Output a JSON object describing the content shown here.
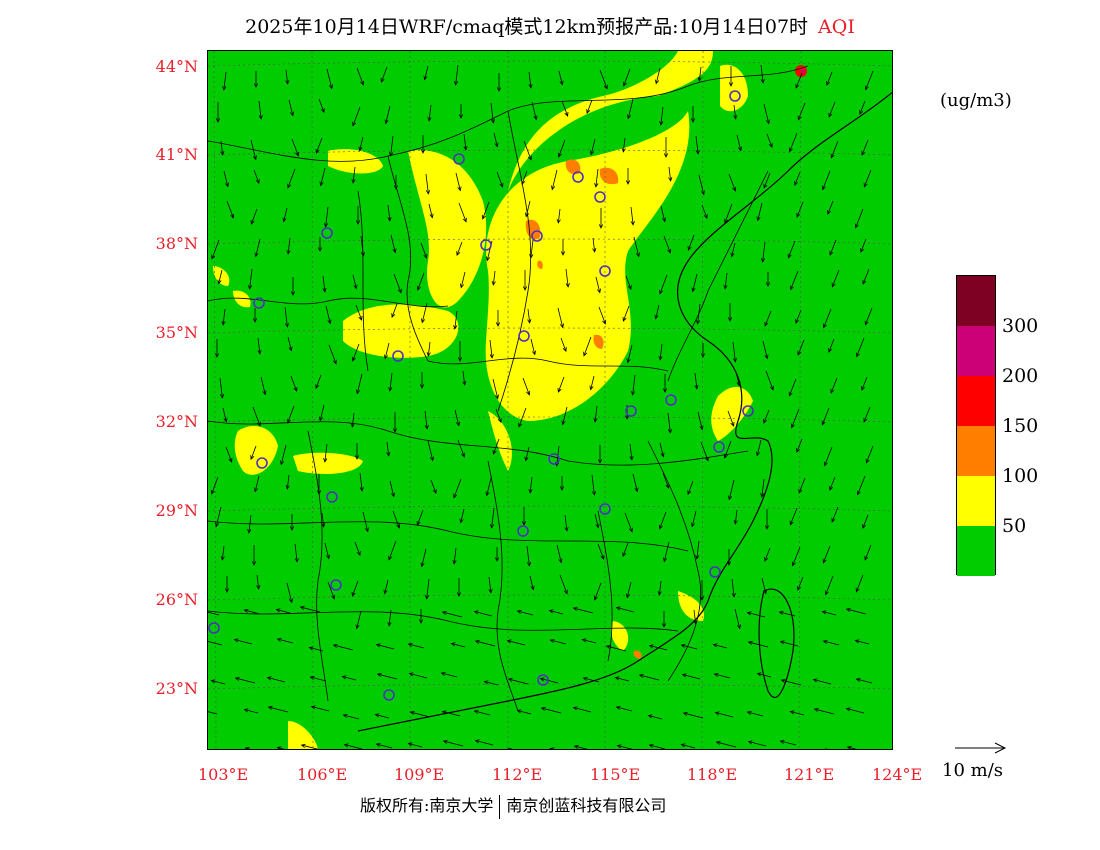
{
  "header": {
    "title": "2025年10月14日WRF/cmaq模式12km预报产品:10月14日07时",
    "variable": "AQI"
  },
  "map": {
    "lat_labels": [
      "44°N",
      "41°N",
      "38°N",
      "35°N",
      "32°N",
      "29°N",
      "26°N",
      "23°N"
    ],
    "lon_labels": [
      "103°E",
      "106°E",
      "109°E",
      "112°E",
      "115°E",
      "118°E",
      "121°E",
      "124°E"
    ]
  },
  "legend": {
    "unit": "(ug/m3)",
    "levels": [
      {
        "label": "50",
        "color": "#00cc00"
      },
      {
        "label": "100",
        "color": "#ffff00"
      },
      {
        "label": "150",
        "color": "#ff7e00"
      },
      {
        "label": "200",
        "color": "#ff0000"
      },
      {
        "label": "300",
        "color": "#cc0077"
      },
      {
        "label": "",
        "color": "#7e0023"
      }
    ],
    "tick_labels": [
      "50",
      "100",
      "150",
      "200",
      "300"
    ]
  },
  "wind_vector": {
    "label": "10 m/s"
  },
  "footer": {
    "copyright": "版权所有:南京大学",
    "company": "南京创蓝科技有限公司"
  },
  "colors": {
    "good": "#00cc00",
    "moderate": "#ffff00",
    "usg": "#ff7e00",
    "unhealthy": "#ff0000",
    "very_unhealthy": "#cc0077",
    "hazardous": "#7e0023",
    "axis_label": "#e8202a",
    "station_marker": "#5030c0"
  }
}
